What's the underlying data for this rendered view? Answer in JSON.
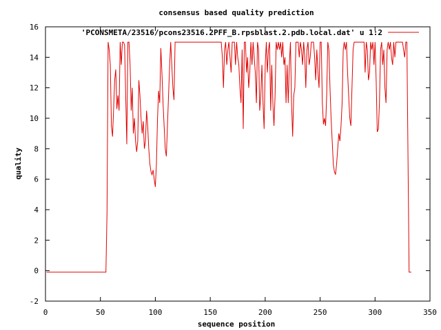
{
  "chart_data": {
    "type": "line",
    "title": "consensus based quality prediction",
    "xlabel": "sequence position",
    "ylabel": "quality",
    "xlim": [
      0,
      350
    ],
    "ylim": [
      -2,
      16
    ],
    "xticks": [
      0,
      50,
      100,
      150,
      200,
      250,
      300,
      350
    ],
    "yticks": [
      -2,
      0,
      2,
      4,
      6,
      8,
      10,
      12,
      14,
      16
    ],
    "grid": false,
    "legend_position": "top-right",
    "series": [
      {
        "name": "'PCONSMETA/23516/pcons23516.2PFF_B.rpsblast.2.pdb.local.dat' u 1:2",
        "color": "#e00000",
        "points": [
          [
            1,
            -0.1
          ],
          [
            10,
            -0.1
          ],
          [
            20,
            -0.1
          ],
          [
            30,
            -0.1
          ],
          [
            40,
            -0.1
          ],
          [
            50,
            -0.1
          ],
          [
            55,
            -0.1
          ],
          [
            56,
            3.8
          ],
          [
            57,
            15.0
          ],
          [
            58,
            14.5
          ],
          [
            59,
            13.5
          ],
          [
            60,
            9.5
          ],
          [
            61,
            8.8
          ],
          [
            62,
            10.5
          ],
          [
            63,
            12.5
          ],
          [
            64,
            13.2
          ],
          [
            65,
            10.6
          ],
          [
            66,
            11.5
          ],
          [
            67,
            10.5
          ],
          [
            68,
            15.0
          ],
          [
            69,
            13.5
          ],
          [
            70,
            15.0
          ],
          [
            71,
            15.0
          ],
          [
            72,
            14.8
          ],
          [
            73,
            11.5
          ],
          [
            74,
            8.3
          ],
          [
            75,
            15.0
          ],
          [
            76,
            15.0
          ],
          [
            77,
            13.5
          ],
          [
            78,
            10.5
          ],
          [
            79,
            12.0
          ],
          [
            80,
            9.0
          ],
          [
            81,
            10.0
          ],
          [
            82,
            8.5
          ],
          [
            83,
            7.8
          ],
          [
            84,
            8.5
          ],
          [
            85,
            12.5
          ],
          [
            86,
            11.5
          ],
          [
            87,
            10.0
          ],
          [
            88,
            9.0
          ],
          [
            89,
            9.8
          ],
          [
            90,
            8.0
          ],
          [
            91,
            8.5
          ],
          [
            92,
            10.5
          ],
          [
            93,
            9.5
          ],
          [
            94,
            8.0
          ],
          [
            95,
            7.0
          ],
          [
            96,
            6.5
          ],
          [
            97,
            6.3
          ],
          [
            98,
            6.6
          ],
          [
            99,
            6.0
          ],
          [
            100,
            5.5
          ],
          [
            101,
            7.0
          ],
          [
            102,
            10.0
          ],
          [
            103,
            11.8
          ],
          [
            104,
            11.0
          ],
          [
            105,
            14.6
          ],
          [
            106,
            13.0
          ],
          [
            107,
            11.0
          ],
          [
            108,
            9.5
          ],
          [
            109,
            8.0
          ],
          [
            110,
            7.5
          ],
          [
            111,
            9.5
          ],
          [
            112,
            11.5
          ],
          [
            113,
            13.5
          ],
          [
            114,
            15.0
          ],
          [
            115,
            13.5
          ],
          [
            116,
            12.0
          ],
          [
            117,
            11.2
          ],
          [
            118,
            15.0
          ],
          [
            120,
            15.0
          ],
          [
            130,
            15.0
          ],
          [
            140,
            15.0
          ],
          [
            150,
            15.0
          ],
          [
            160,
            15.0
          ],
          [
            161,
            14.0
          ],
          [
            162,
            12.0
          ],
          [
            163,
            14.5
          ],
          [
            164,
            15.0
          ],
          [
            165,
            13.5
          ],
          [
            166,
            14.5
          ],
          [
            167,
            15.0
          ],
          [
            168,
            14.0
          ],
          [
            169,
            13.0
          ],
          [
            170,
            15.0
          ],
          [
            172,
            15.0
          ],
          [
            173,
            13.5
          ],
          [
            174,
            15.0
          ],
          [
            175,
            14.0
          ],
          [
            176,
            13.5
          ],
          [
            177,
            12.0
          ],
          [
            178,
            11.0
          ],
          [
            179,
            14.5
          ],
          [
            180,
            9.3
          ],
          [
            181,
            15.0
          ],
          [
            182,
            15.0
          ],
          [
            183,
            13.0
          ],
          [
            184,
            14.0
          ],
          [
            185,
            12.0
          ],
          [
            186,
            13.0
          ],
          [
            187,
            15.0
          ],
          [
            188,
            13.5
          ],
          [
            189,
            15.0
          ],
          [
            190,
            14.0
          ],
          [
            191,
            13.0
          ],
          [
            192,
            11.0
          ],
          [
            193,
            15.0
          ],
          [
            194,
            14.5
          ],
          [
            195,
            10.5
          ],
          [
            196,
            11.5
          ],
          [
            197,
            13.5
          ],
          [
            198,
            11.0
          ],
          [
            199,
            9.3
          ],
          [
            200,
            13.5
          ],
          [
            201,
            15.0
          ],
          [
            202,
            13.0
          ],
          [
            203,
            14.5
          ],
          [
            204,
            15.0
          ],
          [
            205,
            10.5
          ],
          [
            206,
            13.5
          ],
          [
            207,
            11.0
          ],
          [
            208,
            9.5
          ],
          [
            209,
            11.5
          ],
          [
            210,
            15.0
          ],
          [
            211,
            14.5
          ],
          [
            212,
            15.0
          ],
          [
            213,
            14.5
          ],
          [
            214,
            15.0
          ],
          [
            215,
            14.0
          ],
          [
            216,
            15.0
          ],
          [
            217,
            13.5
          ],
          [
            218,
            14.0
          ],
          [
            219,
            11.0
          ],
          [
            220,
            13.5
          ],
          [
            221,
            11.0
          ],
          [
            222,
            13.5
          ],
          [
            223,
            15.0
          ],
          [
            224,
            11.0
          ],
          [
            225,
            8.8
          ],
          [
            226,
            11.5
          ],
          [
            227,
            12.0
          ],
          [
            228,
            15.0
          ],
          [
            230,
            15.0
          ],
          [
            231,
            14.0
          ],
          [
            232,
            15.0
          ],
          [
            233,
            14.5
          ],
          [
            234,
            13.5
          ],
          [
            235,
            15.0
          ],
          [
            236,
            14.0
          ],
          [
            237,
            12.0
          ],
          [
            238,
            14.5
          ],
          [
            239,
            15.0
          ],
          [
            240,
            13.5
          ],
          [
            241,
            14.0
          ],
          [
            242,
            15.0
          ],
          [
            244,
            15.0
          ],
          [
            245,
            14.0
          ],
          [
            246,
            12.5
          ],
          [
            247,
            14.5
          ],
          [
            248,
            13.0
          ],
          [
            249,
            12.0
          ],
          [
            250,
            15.0
          ],
          [
            251,
            15.0
          ],
          [
            252,
            11.0
          ],
          [
            253,
            9.6
          ],
          [
            254,
            10.0
          ],
          [
            255,
            9.5
          ],
          [
            256,
            11.5
          ],
          [
            257,
            15.0
          ],
          [
            258,
            14.5
          ],
          [
            259,
            12.0
          ],
          [
            260,
            10.0
          ],
          [
            261,
            8.5
          ],
          [
            262,
            7.0
          ],
          [
            263,
            6.5
          ],
          [
            264,
            6.3
          ],
          [
            265,
            7.0
          ],
          [
            266,
            8.0
          ],
          [
            267,
            9.0
          ],
          [
            268,
            8.5
          ],
          [
            269,
            9.5
          ],
          [
            270,
            11.0
          ],
          [
            271,
            14.5
          ],
          [
            272,
            15.0
          ],
          [
            273,
            14.5
          ],
          [
            274,
            15.0
          ],
          [
            275,
            13.0
          ],
          [
            276,
            11.5
          ],
          [
            277,
            10.0
          ],
          [
            278,
            9.5
          ],
          [
            279,
            12.0
          ],
          [
            280,
            14.5
          ],
          [
            281,
            15.0
          ],
          [
            290,
            15.0
          ],
          [
            291,
            13.0
          ],
          [
            292,
            15.0
          ],
          [
            293,
            14.5
          ],
          [
            294,
            12.5
          ],
          [
            295,
            13.0
          ],
          [
            296,
            15.0
          ],
          [
            297,
            14.5
          ],
          [
            298,
            15.0
          ],
          [
            299,
            13.5
          ],
          [
            300,
            15.0
          ],
          [
            301,
            12.5
          ],
          [
            302,
            9.1
          ],
          [
            303,
            9.3
          ],
          [
            304,
            11.0
          ],
          [
            305,
            14.5
          ],
          [
            306,
            15.0
          ],
          [
            307,
            13.5
          ],
          [
            308,
            14.5
          ],
          [
            309,
            12.0
          ],
          [
            310,
            11.0
          ],
          [
            311,
            14.5
          ],
          [
            312,
            15.0
          ],
          [
            313,
            14.5
          ],
          [
            314,
            15.0
          ],
          [
            315,
            14.0
          ],
          [
            316,
            13.5
          ],
          [
            317,
            15.0
          ],
          [
            318,
            14.0
          ],
          [
            319,
            15.0
          ],
          [
            320,
            15.0
          ],
          [
            325,
            15.0
          ],
          [
            326,
            14.5
          ],
          [
            327,
            14.0
          ],
          [
            328,
            15.0
          ],
          [
            329,
            15.0
          ],
          [
            330,
            7.5
          ],
          [
            331,
            -0.1
          ],
          [
            332,
            -0.1
          ],
          [
            333,
            -0.1
          ]
        ]
      }
    ]
  }
}
